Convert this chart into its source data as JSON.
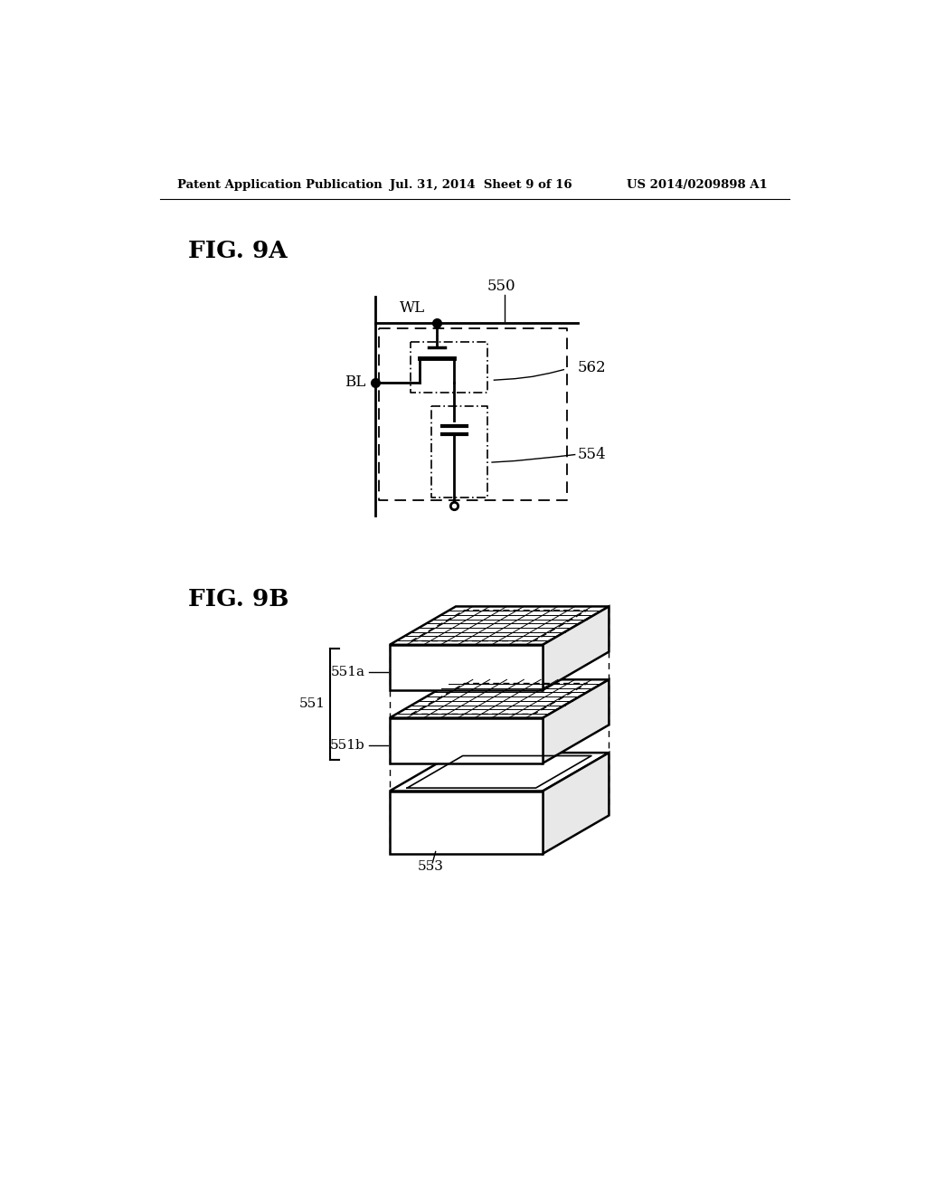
{
  "bg_color": "#ffffff",
  "header_left": "Patent Application Publication",
  "header_mid": "Jul. 31, 2014  Sheet 9 of 16",
  "header_right": "US 2014/0209898 A1",
  "fig9a_label": "FIG. 9A",
  "fig9b_label": "FIG. 9B",
  "label_550": "550",
  "label_562": "562",
  "label_554": "554",
  "label_WL": "WL",
  "label_BL": "BL",
  "label_551a": "551a",
  "label_551b": "551b",
  "label_551": "551",
  "label_553": "553"
}
